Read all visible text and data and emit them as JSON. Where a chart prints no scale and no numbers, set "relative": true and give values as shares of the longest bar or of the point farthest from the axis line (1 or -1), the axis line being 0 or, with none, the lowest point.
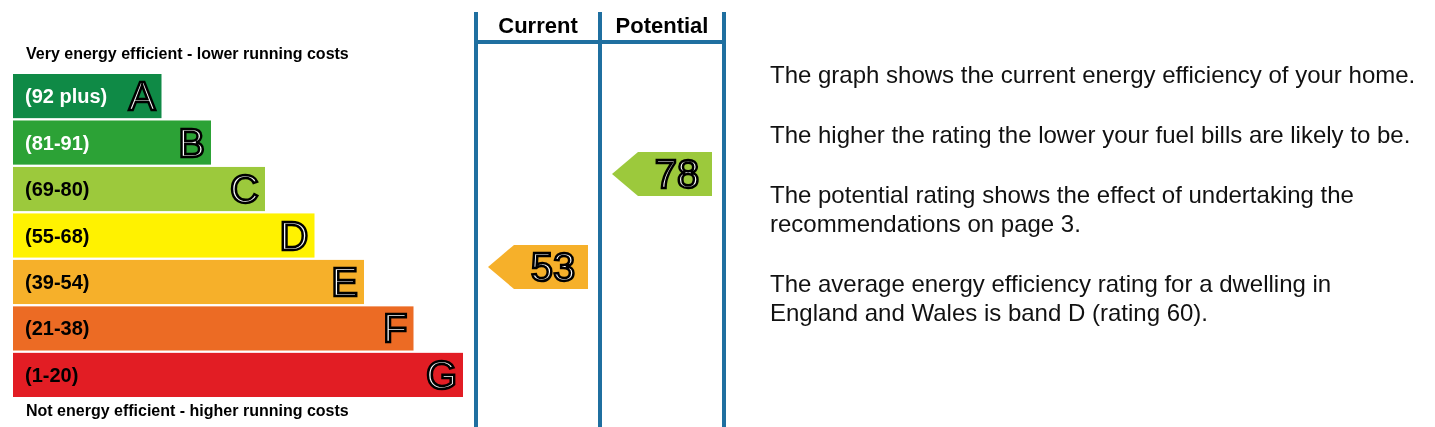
{
  "chart_data": {
    "type": "bar",
    "orientation": "horizontal",
    "relative": true,
    "categories": [
      "A",
      "B",
      "C",
      "D",
      "E",
      "F",
      "G"
    ],
    "values": [
      0.33,
      0.44,
      0.56,
      0.67,
      0.78,
      0.89,
      1
    ],
    "colors": [
      "#0f8a46",
      "#2ca236",
      "#9cc93c",
      "#fff200",
      "#f6b02a",
      "#ec6b24",
      "#e21d24"
    ],
    "annotations": [
      "Very energy efficient - lower running costs",
      "Not energy efficient - higher running costs",
      "Current",
      "Potential",
      "(92 plus)",
      "(81-91)",
      "(69-80)",
      "(55-68)",
      "(39-54)",
      "(21-38)",
      "(1-20)",
      "53",
      "78",
      "The graph shows the current energy efficiency of your home.",
      "The higher the rating the lower your fuel bills are likely to be.",
      "The potential rating shows the effect of undertaking the recommendations on page 3.",
      "The average energy efficiency rating for a dwelling in England and Wales is band D (rating 60)."
    ]
  }
}
